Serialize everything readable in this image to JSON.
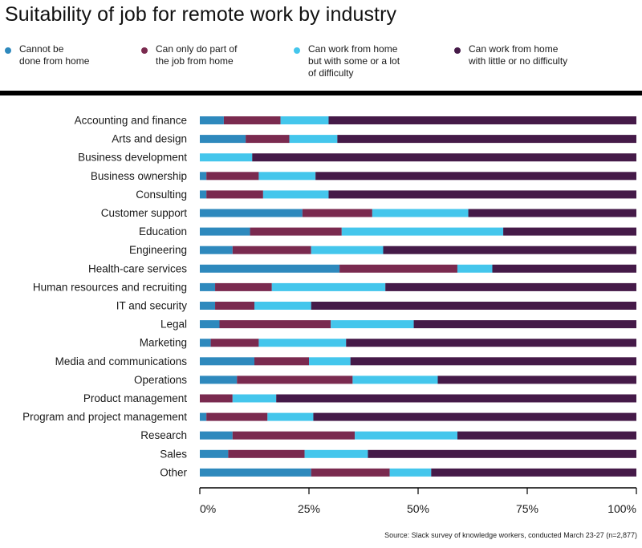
{
  "title": "Suitability of job for remote work by industry",
  "source": "Source: Slack survey of knowledge workers, conducted March 23-27 (n=2,877)",
  "colors": {
    "cannot": "#2e89bd",
    "partial": "#7a2a4f",
    "some_difficulty": "#44c6ec",
    "little_difficulty": "#451a48"
  },
  "legend": [
    {
      "label": "Cannot be\ndone from home",
      "color": "#2e89bd"
    },
    {
      "label": "Can only do part of\nthe job from home",
      "color": "#7a2a4f"
    },
    {
      "label": "Can work from home\nbut with some or a lot\nof difficulty",
      "color": "#44c6ec"
    },
    {
      "label": "Can work from home\nwith little or no difficulty",
      "color": "#451a48"
    }
  ],
  "chart_data": {
    "type": "bar",
    "orientation": "horizontal",
    "stacked": true,
    "title": "Suitability of job for remote work by industry",
    "categories": [
      "Accounting and finance",
      "Arts and design",
      "Business development",
      "Business ownership",
      "Consulting",
      "Customer support",
      "Education",
      "Engineering",
      "Health-care services",
      "Human resources and recruiting",
      "IT and security",
      "Legal",
      "Marketing",
      "Media and communications",
      "Operations",
      "Product management",
      "Program and project management",
      "Research",
      "Sales",
      "Other"
    ],
    "series": [
      {
        "name": "Cannot be done from home",
        "color": "#2e89bd",
        "values": [
          5.5,
          10.5,
          0,
          1.5,
          1.5,
          23.5,
          11.5,
          7.5,
          32,
          3.5,
          3.5,
          4.5,
          2.5,
          12.5,
          8.5,
          0,
          1.5,
          7.5,
          6.5,
          25.5
        ]
      },
      {
        "name": "Can only do part of the job from home",
        "color": "#7a2a4f",
        "values": [
          13,
          10,
          0,
          12,
          13,
          16,
          21,
          18,
          27,
          13,
          9,
          25.5,
          11,
          12.5,
          26.5,
          7.5,
          14,
          28,
          17.5,
          18
        ]
      },
      {
        "name": "Can work from home but with some or a lot of difficulty",
        "color": "#44c6ec",
        "values": [
          11,
          11,
          12,
          13,
          15,
          22,
          37,
          16.5,
          8,
          26,
          13,
          19,
          20,
          9.5,
          19.5,
          10,
          10.5,
          23.5,
          14.5,
          9.5
        ]
      },
      {
        "name": "Can work from home with little or no difficulty",
        "color": "#451a48",
        "values": [
          70.5,
          68.5,
          88,
          73.5,
          70.5,
          38.5,
          30.5,
          58,
          33,
          57.5,
          74.5,
          51,
          66.5,
          65.5,
          45.5,
          82.5,
          74,
          41,
          61.5,
          47
        ]
      }
    ],
    "xlim": [
      0,
      100
    ],
    "xticks": [
      "0%",
      "25%",
      "50%",
      "75%",
      "100%"
    ],
    "xtick_values": [
      0,
      25,
      50,
      75,
      100
    ],
    "grid": false
  }
}
